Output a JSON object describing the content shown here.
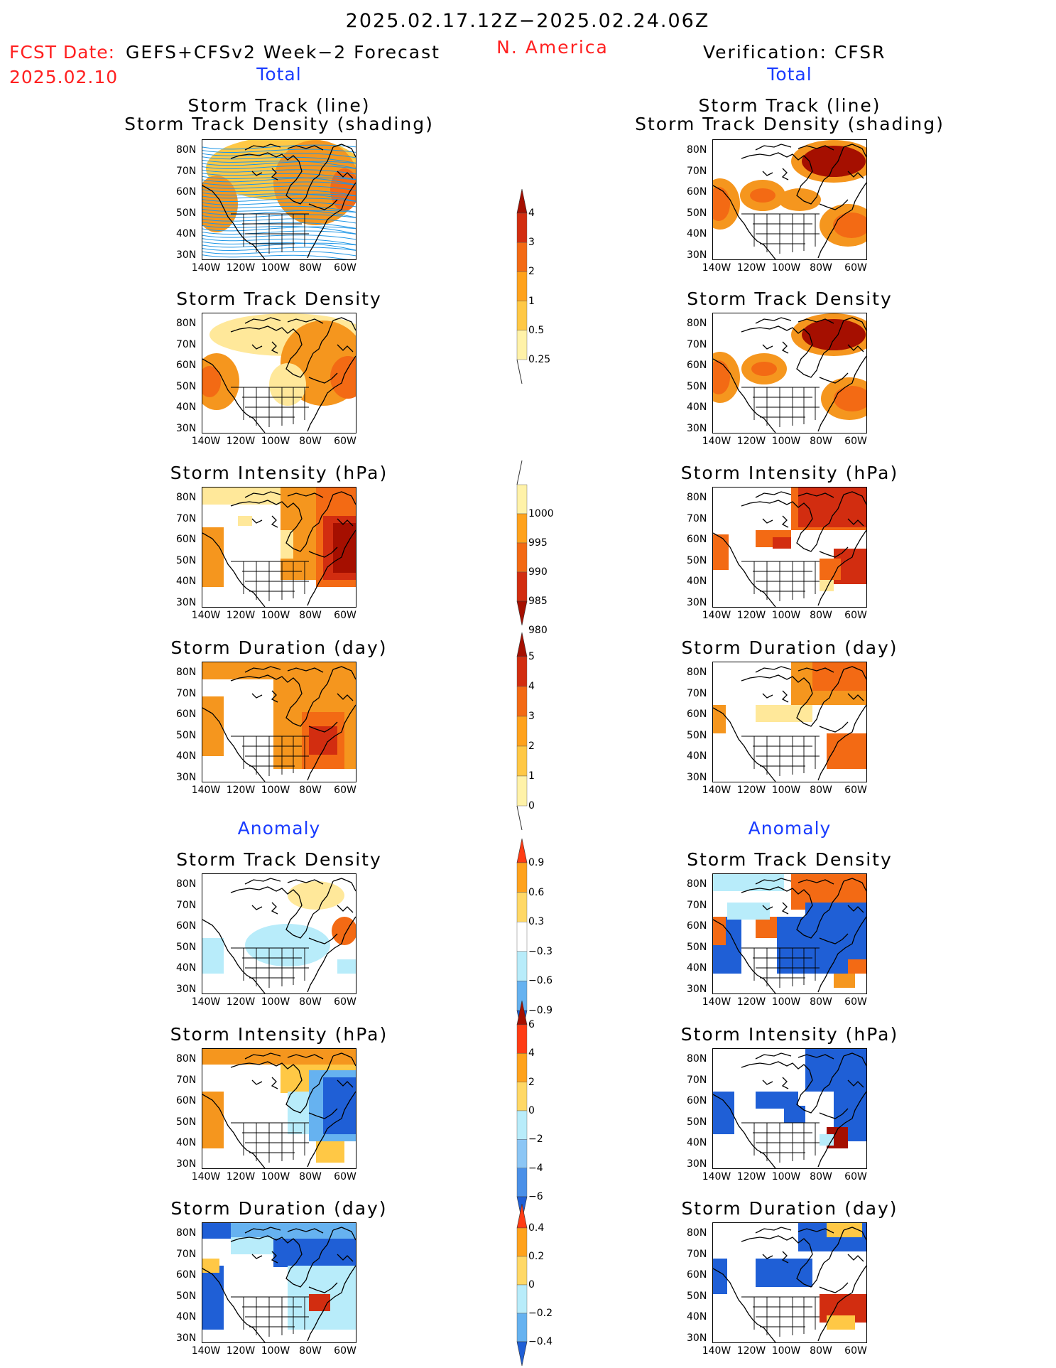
{
  "header": {
    "date_range": "2025.02.17.12Z−2025.02.24.06Z",
    "fcst_label": "FCST Date:",
    "model": "GEFS+CFSv2 Week−2 Forecast",
    "fcst_date": "2025.02.10",
    "region": "N. America",
    "verification": "Verification: CFSR"
  },
  "columns": [
    {
      "total_label": "Total",
      "anomaly_label": "Anomaly"
    },
    {
      "total_label": "Total",
      "anomaly_label": "Anomaly"
    }
  ],
  "panel_titles": {
    "track_line": "Storm Track (line)",
    "track_shading": "Storm Track Density (shading)",
    "track_density": "Storm Track Density",
    "intensity": "Storm Intensity (hPa)",
    "duration": "Storm Duration (day)"
  },
  "axes": {
    "lat_ticks": [
      "80N",
      "70N",
      "60N",
      "50N",
      "40N",
      "30N"
    ],
    "lon_ticks": [
      "140W",
      "120W",
      "100W",
      "80W",
      "60W"
    ]
  },
  "colorbars": {
    "density_total": {
      "labels": [
        "4",
        "3",
        "2",
        "1",
        "0.5",
        "0.25"
      ],
      "colors": [
        "#a50f00",
        "#d22d10",
        "#f36a14",
        "#ffa21c",
        "#ffc845",
        "#fff2a8"
      ]
    },
    "intensity_total": {
      "labels": [
        "1000",
        "995",
        "990",
        "985",
        "980"
      ],
      "colors": [
        "#fff2a8",
        "#ffa21c",
        "#f36a14",
        "#d22d10",
        "#a50f00"
      ]
    },
    "duration_total": {
      "labels": [
        "5",
        "4",
        "3",
        "2",
        "1",
        "0"
      ],
      "colors": [
        "#a50f00",
        "#d22d10",
        "#f36a14",
        "#ffa21c",
        "#ffc845",
        "#fff2a8"
      ]
    },
    "density_anom": {
      "labels": [
        "0.9",
        "0.6",
        "0.3",
        "−0.3",
        "−0.6",
        "−0.9"
      ],
      "colors": [
        "#ff3c14",
        "#ffa21c",
        "#ffd866",
        "#ffffff",
        "#b8ecfa",
        "#66b2f0",
        "#1f5fd6"
      ]
    },
    "intensity_anom": {
      "labels": [
        "6",
        "4",
        "2",
        "0",
        "−2",
        "−4",
        "−6"
      ],
      "colors": [
        "#a50f00",
        "#ff3c14",
        "#ffa21c",
        "#ffd866",
        "#b8ecfa",
        "#8cc6f5",
        "#4a90e8",
        "#1f5fd6"
      ]
    },
    "duration_anom": {
      "labels": [
        "0.4",
        "0.2",
        "0",
        "−0.2",
        "−0.4"
      ],
      "colors": [
        "#ff3c14",
        "#ffa21c",
        "#ffd866",
        "#b8ecfa",
        "#66b2f0",
        "#1f5fd6"
      ]
    }
  },
  "palette": {
    "track_line": "#1e96e6",
    "yellow": "#ffe89a",
    "light_orange": "#ffc845",
    "orange": "#f5961e",
    "dark_orange": "#f36a14",
    "red": "#d22d10",
    "dark_red": "#a50f00",
    "light_blue": "#b8ecfa",
    "mid_blue": "#66b2f0",
    "blue": "#1f5fd6"
  }
}
